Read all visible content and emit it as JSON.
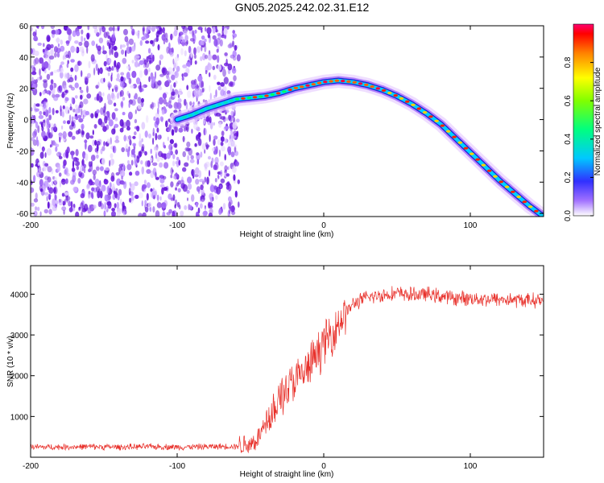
{
  "title": "GN05.2025.242.02.31.E12",
  "colors": {
    "snr_line": "#e8302a",
    "axis": "#000000"
  },
  "chart_data": [
    {
      "type": "heatmap",
      "xlabel": "Height of straight line (km)",
      "ylabel": "Frequency (Hz)",
      "xlim": [
        -200,
        150
      ],
      "ylim": [
        -62,
        60
      ],
      "x_ticks": [
        -200,
        -100,
        0,
        100
      ],
      "y_ticks": [
        -60,
        -40,
        -20,
        0,
        20,
        40,
        60
      ],
      "noise_region_x": [
        -200,
        -58
      ],
      "signal_ridge": {
        "x": [
          -100,
          -90,
          -80,
          -70,
          -60,
          -50,
          -40,
          -30,
          -20,
          -10,
          0,
          10,
          20,
          30,
          40,
          50,
          60,
          70,
          80,
          90,
          100,
          110,
          120,
          130,
          140,
          150
        ],
        "y": [
          0,
          3,
          7,
          10,
          13,
          14,
          15,
          17,
          20,
          22,
          24,
          25,
          24,
          22,
          19,
          15,
          10,
          4,
          -3,
          -12,
          -21,
          -30,
          -39,
          -47,
          -55,
          -62
        ]
      },
      "colorbar": {
        "label": "Normalized spectral amplitude",
        "range": [
          0,
          1
        ],
        "ticks": [
          0.0,
          0.2,
          0.4,
          0.6,
          0.8
        ],
        "tick_labels": [
          "0.0",
          "0.2",
          "0.4",
          "0.6",
          "0.8"
        ]
      }
    },
    {
      "type": "line",
      "xlabel": "Height of straight line (km)",
      "ylabel": "SNR (10 * v/v)",
      "xlim": [
        -200,
        150
      ],
      "ylim": [
        0,
        4700
      ],
      "x_ticks": [
        -200,
        -100,
        0,
        100
      ],
      "y_ticks": [
        1000,
        2000,
        3000,
        4000
      ],
      "series": [
        {
          "x": [
            -200,
            -180,
            -160,
            -140,
            -120,
            -100,
            -80,
            -60,
            -50,
            -45,
            -40,
            -35,
            -30,
            -25,
            -20,
            -15,
            -10,
            -5,
            0,
            5,
            10,
            15,
            20,
            25,
            30,
            40,
            50,
            60,
            70,
            80,
            90,
            100,
            110,
            120,
            130,
            140,
            150
          ],
          "values": [
            250,
            250,
            260,
            250,
            260,
            250,
            260,
            270,
            330,
            450,
            800,
            1200,
            1500,
            1700,
            1850,
            2000,
            2200,
            2500,
            2800,
            3000,
            3300,
            3550,
            3750,
            3850,
            3920,
            3980,
            4020,
            3980,
            4000,
            3950,
            3900,
            3900,
            3880,
            3870,
            3860,
            3850,
            3850
          ]
        }
      ]
    }
  ]
}
